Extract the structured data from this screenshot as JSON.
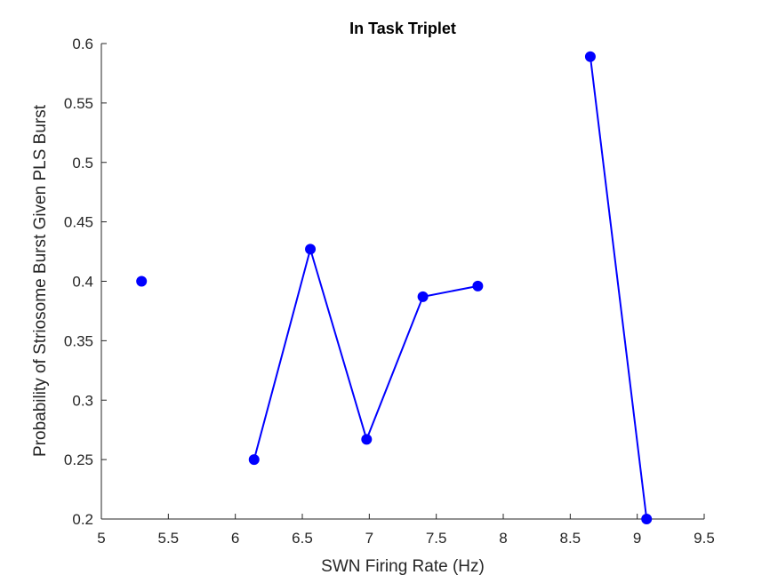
{
  "chart_data": {
    "type": "line",
    "title": "In Task Triplet",
    "xlabel": "SWN Firing Rate (Hz)",
    "ylabel": "Probability of Striosome Burst Given PLS Burst",
    "xlim": [
      5,
      9.5
    ],
    "ylim": [
      0.2,
      0.6
    ],
    "xticks": [
      "5",
      "5.5",
      "6",
      "6.5",
      "7",
      "7.5",
      "8",
      "8.5",
      "9",
      "9.5"
    ],
    "yticks": [
      "0.2",
      "0.25",
      "0.3",
      "0.35",
      "0.4",
      "0.45",
      "0.5",
      "0.55",
      "0.6"
    ],
    "grid": false,
    "legend": "none",
    "color": "#0000ff",
    "series": [
      {
        "x": [
          5.3,
          null,
          6.14,
          6.56,
          6.98,
          7.4,
          7.81,
          null,
          8.65,
          9.07
        ],
        "y": [
          0.4,
          null,
          0.25,
          0.427,
          0.267,
          0.387,
          0.396,
          null,
          0.589,
          0.2
        ]
      }
    ]
  }
}
